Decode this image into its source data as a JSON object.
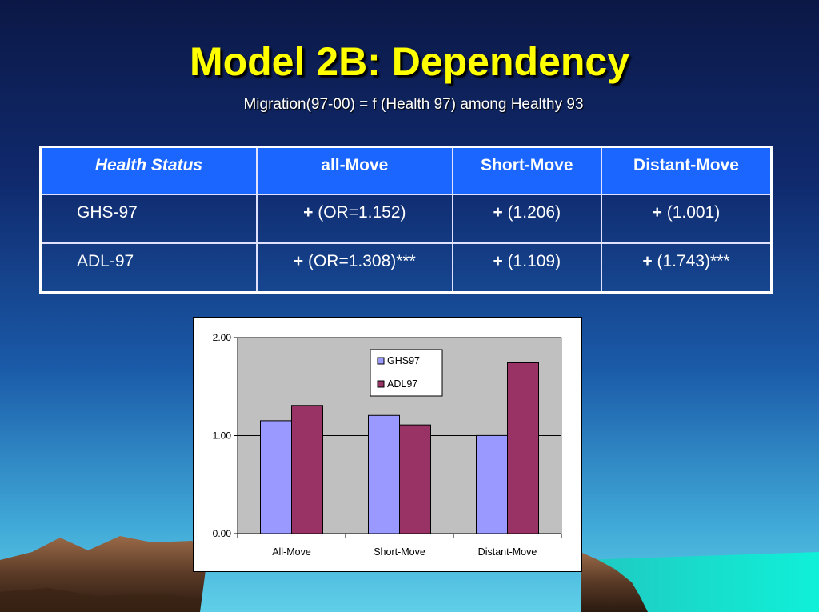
{
  "slide": {
    "title": "Model 2B: Dependency",
    "subtitle": "Migration(97-00) = f (Health 97) among Healthy 93"
  },
  "table": {
    "headers": [
      "Health Status",
      "all-Move",
      "Short-Move",
      "Distant-Move"
    ],
    "rows": [
      {
        "label": "GHS-97",
        "cells": [
          {
            "sign": "+",
            "value": "(OR=1.152)",
            "significant": false
          },
          {
            "sign": "+",
            "value": "(1.206)",
            "significant": false
          },
          {
            "sign": "+",
            "value": "(1.001)",
            "significant": false
          }
        ]
      },
      {
        "label": "ADL-97",
        "cells": [
          {
            "sign": "+",
            "value": "(OR=1.308)***",
            "significant": true
          },
          {
            "sign": "+",
            "value": "(1.109)",
            "significant": false
          },
          {
            "sign": "+",
            "value": "(1.743)***",
            "significant": true
          }
        ]
      }
    ],
    "colors": {
      "header_bg": "#1a66ff",
      "significant_text": "#ffff00"
    }
  },
  "chart_data": {
    "type": "bar",
    "categories": [
      "All-Move",
      "Short-Move",
      "Distant-Move"
    ],
    "series": [
      {
        "name": "GHS97",
        "values": [
          1.152,
          1.206,
          1.001
        ],
        "color": "#9999ff"
      },
      {
        "name": "ADL97",
        "values": [
          1.308,
          1.109,
          1.743
        ],
        "color": "#993366"
      }
    ],
    "ylim": [
      0,
      2
    ],
    "yticks": [
      "0.00",
      "1.00",
      "2.00"
    ],
    "xlabel": "",
    "ylabel": "",
    "grid": true,
    "legend_position": "top-right",
    "plot_background": "#c0c0c0"
  }
}
